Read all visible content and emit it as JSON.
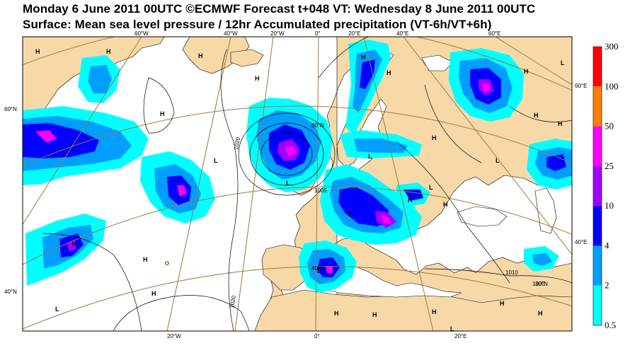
{
  "header": {
    "line1": "Monday 6 June 2011 00UTC ©ECMWF Forecast t+048 VT: Wednesday 8 June 2011 00UTC",
    "line2": "Surface: Mean sea level pressure / 12hr Accumulated precipitation (VT-6h/VT+6h)"
  },
  "map": {
    "top_longitudes": [
      "60°W",
      "40°W",
      "20°W",
      "0°",
      "20°E",
      "40°E",
      "60°E"
    ],
    "bottom_longitudes": [
      "20°W",
      "0°",
      "20°E"
    ],
    "left_latitudes": [
      "60°N",
      "40°N"
    ],
    "right_latitudes": [
      "60°E",
      "40°E"
    ],
    "inner_labels": [
      "60°N",
      "40°N",
      "30°N"
    ],
    "isobar_labels": [
      "1020",
      "1020",
      "1005",
      "1010",
      "1000"
    ],
    "centers": [
      "H",
      "H",
      "H",
      "H",
      "H",
      "H",
      "H",
      "H",
      "H",
      "H",
      "H",
      "H",
      "H",
      "H",
      "H",
      "H",
      "H",
      "H",
      "H",
      "H",
      "H",
      "L",
      "L",
      "L",
      "L",
      "L",
      "L",
      "L",
      "L",
      "L",
      "L"
    ]
  },
  "colors": {
    "land": "#f7d9a8",
    "sea": "#ffffff",
    "grid": "#a07a3a",
    "precip": [
      "#00ffff",
      "#009fff",
      "#0000ff",
      "#9f00ff",
      "#ff00ff",
      "#ff7f00",
      "#ff0000"
    ]
  },
  "legend": {
    "labels": [
      "300",
      "100",
      "50",
      "25",
      "10",
      "4",
      "2",
      "0.5"
    ],
    "colors": [
      "#ff0000",
      "#ff7f00",
      "#ff00ff",
      "#9f00ff",
      "#0000ff",
      "#009fff",
      "#00ffff"
    ]
  }
}
